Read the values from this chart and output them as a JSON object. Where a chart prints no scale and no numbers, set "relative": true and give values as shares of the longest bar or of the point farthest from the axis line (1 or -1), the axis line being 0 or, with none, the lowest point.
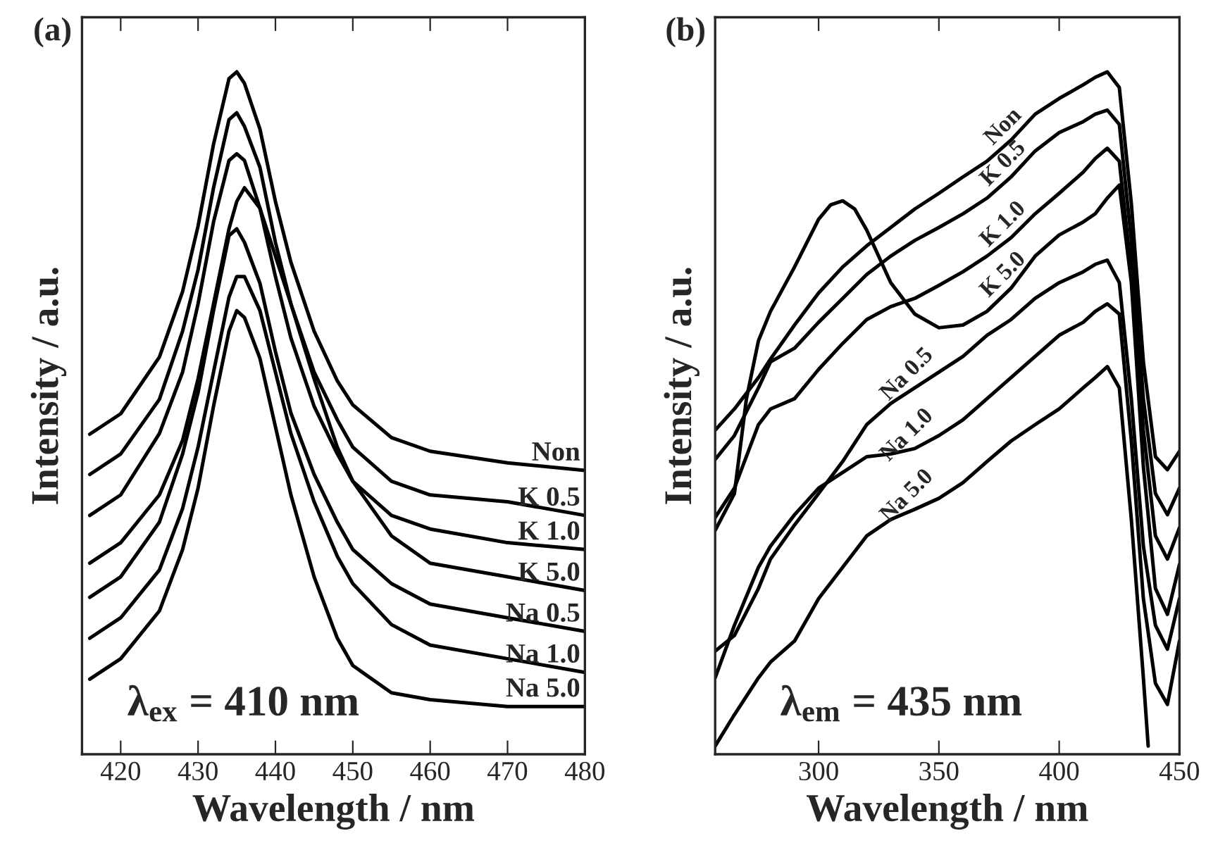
{
  "chart_data": [
    {
      "type": "line",
      "title": "(a)",
      "xlabel": "Wavelength / nm",
      "ylabel": "Intensity / a.u.",
      "relative": true,
      "xlim": [
        415,
        480
      ],
      "xticks": [
        420,
        430,
        440,
        450,
        460,
        470,
        480
      ],
      "grid": false,
      "legend": false,
      "marker": "none",
      "line_style": "solid",
      "annotations": [
        "λ$_{ex}$ = 410 nm"
      ],
      "x": [
        416,
        420,
        425,
        428,
        430,
        432,
        434,
        435,
        436,
        438,
        440,
        442,
        445,
        448,
        450,
        455,
        460,
        470,
        480
      ],
      "series": [
        {
          "name": "Non",
          "color": "#000000",
          "values": [
            0.469,
            0.499,
            0.582,
            0.678,
            0.774,
            0.894,
            0.99,
            1.0,
            0.983,
            0.916,
            0.81,
            0.721,
            0.62,
            0.547,
            0.512,
            0.464,
            0.444,
            0.427,
            0.416
          ]
        },
        {
          "name": "K 0.5",
          "color": "#000000",
          "values": [
            0.41,
            0.44,
            0.52,
            0.62,
            0.71,
            0.83,
            0.93,
            0.94,
            0.92,
            0.86,
            0.75,
            0.66,
            0.56,
            0.49,
            0.45,
            0.4,
            0.38,
            0.37,
            0.35
          ]
        },
        {
          "name": "K 1.0",
          "color": "#000000",
          "values": [
            0.35,
            0.38,
            0.47,
            0.56,
            0.66,
            0.78,
            0.87,
            0.88,
            0.87,
            0.8,
            0.7,
            0.61,
            0.51,
            0.44,
            0.4,
            0.35,
            0.33,
            0.31,
            0.3
          ]
        },
        {
          "name": "K 5.0",
          "color": "#000000",
          "values": [
            0.28,
            0.31,
            0.38,
            0.46,
            0.55,
            0.66,
            0.77,
            0.81,
            0.83,
            0.8,
            0.73,
            0.66,
            0.55,
            0.45,
            0.4,
            0.32,
            0.28,
            0.26,
            0.24
          ]
        },
        {
          "name": "Na 0.5",
          "color": "#000000",
          "values": [
            0.23,
            0.26,
            0.34,
            0.44,
            0.53,
            0.65,
            0.76,
            0.77,
            0.75,
            0.69,
            0.59,
            0.5,
            0.41,
            0.34,
            0.3,
            0.25,
            0.22,
            0.2,
            0.18
          ]
        },
        {
          "name": "Na 1.0",
          "color": "#000000",
          "values": [
            0.17,
            0.2,
            0.27,
            0.36,
            0.45,
            0.56,
            0.67,
            0.7,
            0.7,
            0.65,
            0.56,
            0.47,
            0.37,
            0.29,
            0.25,
            0.19,
            0.16,
            0.14,
            0.12
          ]
        },
        {
          "name": "Na 5.0",
          "color": "#000000",
          "values": [
            0.11,
            0.14,
            0.21,
            0.3,
            0.39,
            0.51,
            0.62,
            0.65,
            0.64,
            0.58,
            0.48,
            0.38,
            0.26,
            0.17,
            0.13,
            0.09,
            0.08,
            0.07,
            0.07
          ]
        }
      ]
    },
    {
      "type": "line",
      "title": "(b)",
      "xlabel": "Wavelength / nm",
      "ylabel": "Intensity / a.u.",
      "relative": true,
      "xlim": [
        257,
        450
      ],
      "xticks": [
        300,
        350,
        400,
        450
      ],
      "grid": false,
      "legend": false,
      "marker": "none",
      "line_style": "solid",
      "annotations": [
        "λ$_{em}$ = 435 nm"
      ],
      "x": [
        257,
        265,
        275,
        280,
        290,
        300,
        310,
        320,
        330,
        340,
        350,
        360,
        370,
        380,
        390,
        400,
        410,
        415,
        420,
        425,
        430,
        435,
        440,
        445,
        450
      ],
      "series": [
        {
          "name": "Non",
          "color": "#000000",
          "values": [
            0.475,
            0.506,
            0.552,
            0.579,
            0.629,
            0.676,
            0.714,
            0.745,
            0.772,
            0.799,
            0.822,
            0.846,
            0.869,
            0.9,
            0.938,
            0.961,
            0.981,
            0.992,
            1.0,
            0.977,
            0.807,
            0.575,
            0.436,
            0.417,
            0.444
          ]
        },
        {
          "name": "K 0.5",
          "color": "#000000",
          "values": [
            0.432,
            0.467,
            0.537,
            0.575,
            0.595,
            0.633,
            0.668,
            0.703,
            0.73,
            0.753,
            0.772,
            0.792,
            0.815,
            0.846,
            0.884,
            0.911,
            0.927,
            0.938,
            0.944,
            0.923,
            0.753,
            0.521,
            0.382,
            0.351,
            0.39
          ]
        },
        {
          "name": "K 1.0",
          "color": "#000000",
          "values": [
            0.347,
            0.39,
            0.483,
            0.506,
            0.521,
            0.564,
            0.602,
            0.637,
            0.656,
            0.668,
            0.687,
            0.707,
            0.73,
            0.757,
            0.792,
            0.822,
            0.853,
            0.873,
            0.888,
            0.869,
            0.707,
            0.475,
            0.32,
            0.286,
            0.332
          ]
        },
        {
          "name": "K 5.0",
          "color": "#000000",
          "x": [
            257,
            265,
            270,
            275,
            280,
            290,
            300,
            305,
            310,
            315,
            320,
            330,
            340,
            350,
            360,
            370,
            380,
            390,
            400,
            410,
            415,
            420,
            425,
            430,
            435,
            440,
            445,
            450
          ],
          "values": [
            0.328,
            0.382,
            0.521,
            0.606,
            0.649,
            0.714,
            0.784,
            0.805,
            0.811,
            0.799,
            0.768,
            0.691,
            0.645,
            0.625,
            0.629,
            0.649,
            0.683,
            0.73,
            0.761,
            0.78,
            0.792,
            0.815,
            0.834,
            0.691,
            0.421,
            0.243,
            0.205,
            0.278
          ]
        },
        {
          "name": "Na 0.5",
          "color": "#000000",
          "values": [
            0.151,
            0.174,
            0.243,
            0.286,
            0.336,
            0.382,
            0.429,
            0.483,
            0.514,
            0.537,
            0.56,
            0.583,
            0.614,
            0.637,
            0.668,
            0.691,
            0.707,
            0.718,
            0.724,
            0.691,
            0.521,
            0.305,
            0.189,
            0.154,
            0.228
          ]
        },
        {
          "name": "Na 1.0",
          "color": "#000000",
          "values": [
            0.112,
            0.189,
            0.274,
            0.305,
            0.351,
            0.39,
            0.413,
            0.436,
            0.44,
            0.448,
            0.467,
            0.49,
            0.521,
            0.552,
            0.583,
            0.614,
            0.633,
            0.649,
            0.66,
            0.645,
            0.459,
            0.228,
            0.104,
            0.073,
            0.166
          ]
        },
        {
          "name": "Na 5.0",
          "color": "#000000",
          "x": [
            257,
            265,
            275,
            280,
            290,
            300,
            310,
            320,
            330,
            340,
            350,
            360,
            370,
            380,
            390,
            400,
            410,
            415,
            420,
            425,
            430,
            435,
            437
          ],
          "values": [
            0.012,
            0.058,
            0.112,
            0.135,
            0.166,
            0.228,
            0.274,
            0.32,
            0.344,
            0.359,
            0.375,
            0.398,
            0.429,
            0.459,
            0.483,
            0.506,
            0.537,
            0.552,
            0.568,
            0.537,
            0.344,
            0.112,
            0.012
          ]
        }
      ]
    }
  ]
}
